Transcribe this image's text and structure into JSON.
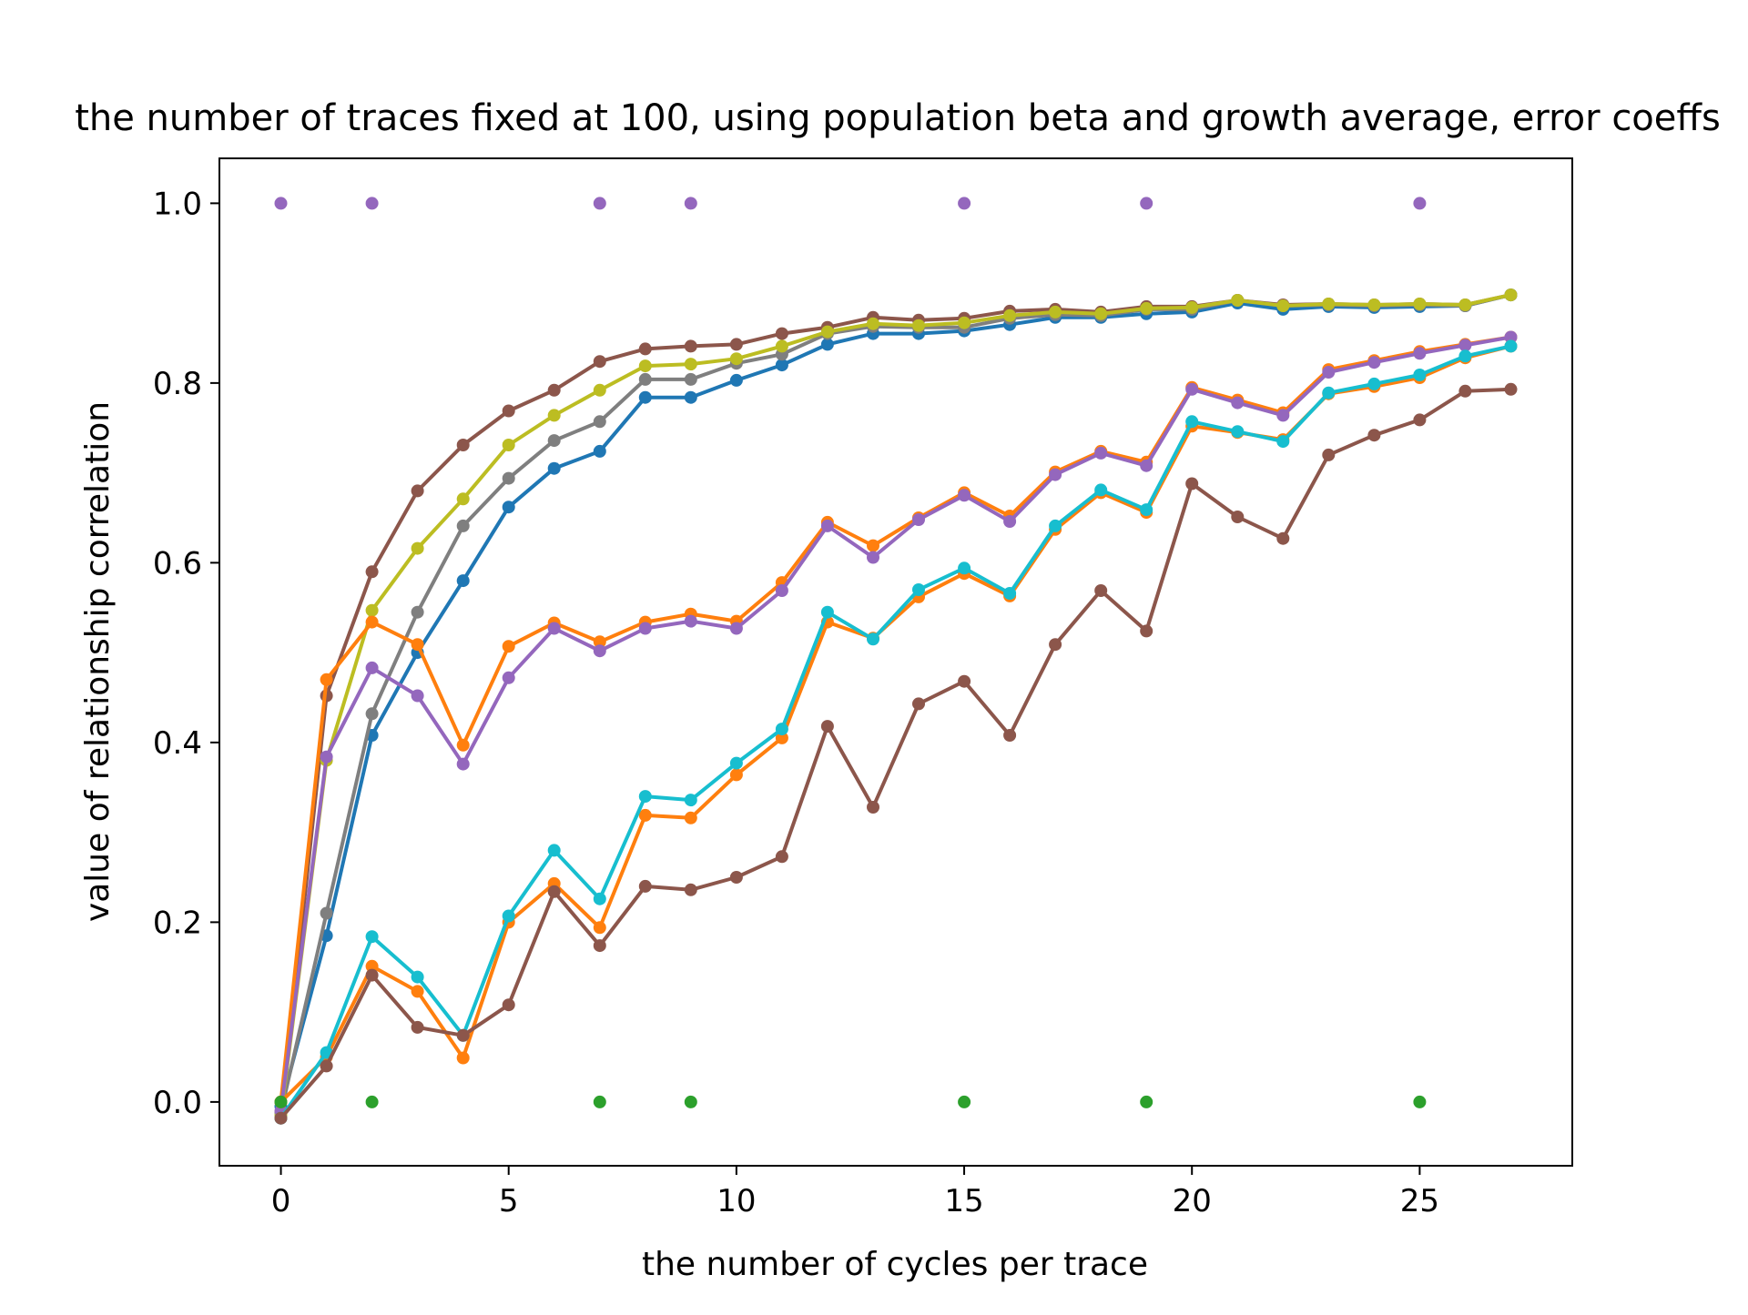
{
  "chart_data": {
    "type": "line",
    "title": "the number of traces fixed at 100, using population beta and growth average, error coeffs",
    "xlabel": "the number of cycles per trace",
    "ylabel": "value of relationship correlation",
    "xlim": [
      -1.35,
      28.35
    ],
    "ylim": [
      -0.071,
      1.05
    ],
    "xticks": [
      0,
      5,
      10,
      15,
      20,
      25
    ],
    "yticks": [
      0.0,
      0.2,
      0.4,
      0.6,
      0.8,
      1.0
    ],
    "xtick_labels": [
      "0",
      "5",
      "10",
      "15",
      "20",
      "25"
    ],
    "ytick_labels": [
      "0.0",
      "0.2",
      "0.4",
      "0.6",
      "0.8",
      "1.0"
    ],
    "grid": false,
    "legend": "none",
    "x": [
      0,
      1,
      2,
      3,
      4,
      5,
      6,
      7,
      8,
      9,
      10,
      11,
      12,
      13,
      14,
      15,
      16,
      17,
      18,
      19,
      20,
      21,
      22,
      23,
      24,
      25,
      26,
      27
    ],
    "series": [
      {
        "color": "#8c564b",
        "markers_only": false,
        "values": [
          -0.018,
          0.452,
          0.59,
          0.68,
          0.731,
          0.769,
          0.792,
          0.824,
          0.838,
          0.841,
          0.843,
          0.855,
          0.862,
          0.873,
          0.87,
          0.872,
          0.88,
          0.882,
          0.879,
          0.885,
          0.885,
          0.892,
          0.887,
          0.888,
          0.887,
          0.888,
          0.887,
          0.898
        ]
      },
      {
        "color": "#1f77b4",
        "markers_only": false,
        "values": [
          -0.005,
          0.185,
          0.408,
          0.5,
          0.58,
          0.662,
          0.705,
          0.724,
          0.784,
          0.784,
          0.803,
          0.82,
          0.843,
          0.855,
          0.855,
          0.858,
          0.865,
          0.873,
          0.873,
          0.877,
          0.879,
          0.889,
          0.882,
          0.885,
          0.884,
          0.885,
          0.886,
          0.898
        ]
      },
      {
        "color": "#7f7f7f",
        "markers_only": false,
        "values": [
          -0.012,
          0.21,
          0.432,
          0.545,
          0.641,
          0.694,
          0.736,
          0.757,
          0.804,
          0.804,
          0.822,
          0.832,
          0.855,
          0.863,
          0.862,
          0.862,
          0.872,
          0.876,
          0.875,
          0.882,
          0.882,
          0.892,
          0.886,
          0.887,
          0.886,
          0.887,
          0.886,
          0.898
        ]
      },
      {
        "color": "#bcbd22",
        "markers_only": false,
        "values": [
          -0.015,
          0.38,
          0.547,
          0.616,
          0.671,
          0.731,
          0.764,
          0.792,
          0.819,
          0.821,
          0.827,
          0.841,
          0.857,
          0.866,
          0.864,
          0.867,
          0.875,
          0.879,
          0.877,
          0.883,
          0.884,
          0.892,
          0.886,
          0.888,
          0.887,
          0.888,
          0.887,
          0.898
        ]
      },
      {
        "color": "#ff7f0e",
        "markers_only": false,
        "values": [
          0.0,
          0.47,
          0.534,
          0.509,
          0.397,
          0.507,
          0.533,
          0.512,
          0.534,
          0.543,
          0.535,
          0.578,
          0.645,
          0.619,
          0.65,
          0.678,
          0.652,
          0.701,
          0.724,
          0.712,
          0.795,
          0.781,
          0.767,
          0.815,
          0.825,
          0.835,
          0.843,
          0.851
        ]
      },
      {
        "color": "#9467bd",
        "markers_only": false,
        "values": [
          -0.01,
          0.384,
          0.483,
          0.452,
          0.376,
          0.472,
          0.527,
          0.502,
          0.527,
          0.535,
          0.527,
          0.569,
          0.641,
          0.606,
          0.648,
          0.675,
          0.646,
          0.698,
          0.722,
          0.708,
          0.793,
          0.778,
          0.764,
          0.812,
          0.823,
          0.833,
          0.842,
          0.851
        ]
      },
      {
        "color": "#ff7f0e",
        "markers_only": false,
        "values": [
          0.0,
          0.05,
          0.151,
          0.123,
          0.049,
          0.2,
          0.243,
          0.194,
          0.319,
          0.316,
          0.364,
          0.405,
          0.534,
          0.516,
          0.562,
          0.588,
          0.563,
          0.637,
          0.678,
          0.656,
          0.752,
          0.745,
          0.737,
          0.788,
          0.796,
          0.806,
          0.828,
          0.841
        ]
      },
      {
        "color": "#17becf",
        "markers_only": false,
        "values": [
          -0.018,
          0.055,
          0.184,
          0.139,
          0.074,
          0.207,
          0.28,
          0.226,
          0.34,
          0.336,
          0.377,
          0.415,
          0.545,
          0.515,
          0.57,
          0.594,
          0.566,
          0.641,
          0.681,
          0.659,
          0.757,
          0.746,
          0.735,
          0.789,
          0.799,
          0.809,
          0.83,
          0.841
        ]
      },
      {
        "color": "#8c564b",
        "markers_only": false,
        "values": [
          -0.018,
          0.04,
          0.141,
          0.083,
          0.074,
          0.108,
          0.234,
          0.174,
          0.24,
          0.236,
          0.25,
          0.273,
          0.418,
          0.328,
          0.443,
          0.468,
          0.408,
          0.509,
          0.569,
          0.524,
          0.688,
          0.651,
          0.627,
          0.72,
          0.742,
          0.759,
          0.791,
          0.793
        ]
      },
      {
        "color": "#9467bd",
        "markers_only": true,
        "x": [
          0,
          2,
          7,
          9,
          15,
          19,
          25
        ],
        "values": [
          1.0,
          1.0,
          1.0,
          1.0,
          1.0,
          1.0,
          1.0
        ]
      },
      {
        "color": "#2ca02c",
        "markers_only": true,
        "x": [
          0,
          2,
          7,
          9,
          15,
          19,
          25
        ],
        "values": [
          0.0,
          0.0,
          0.0,
          0.0,
          0.0,
          0.0,
          0.0
        ]
      }
    ]
  }
}
